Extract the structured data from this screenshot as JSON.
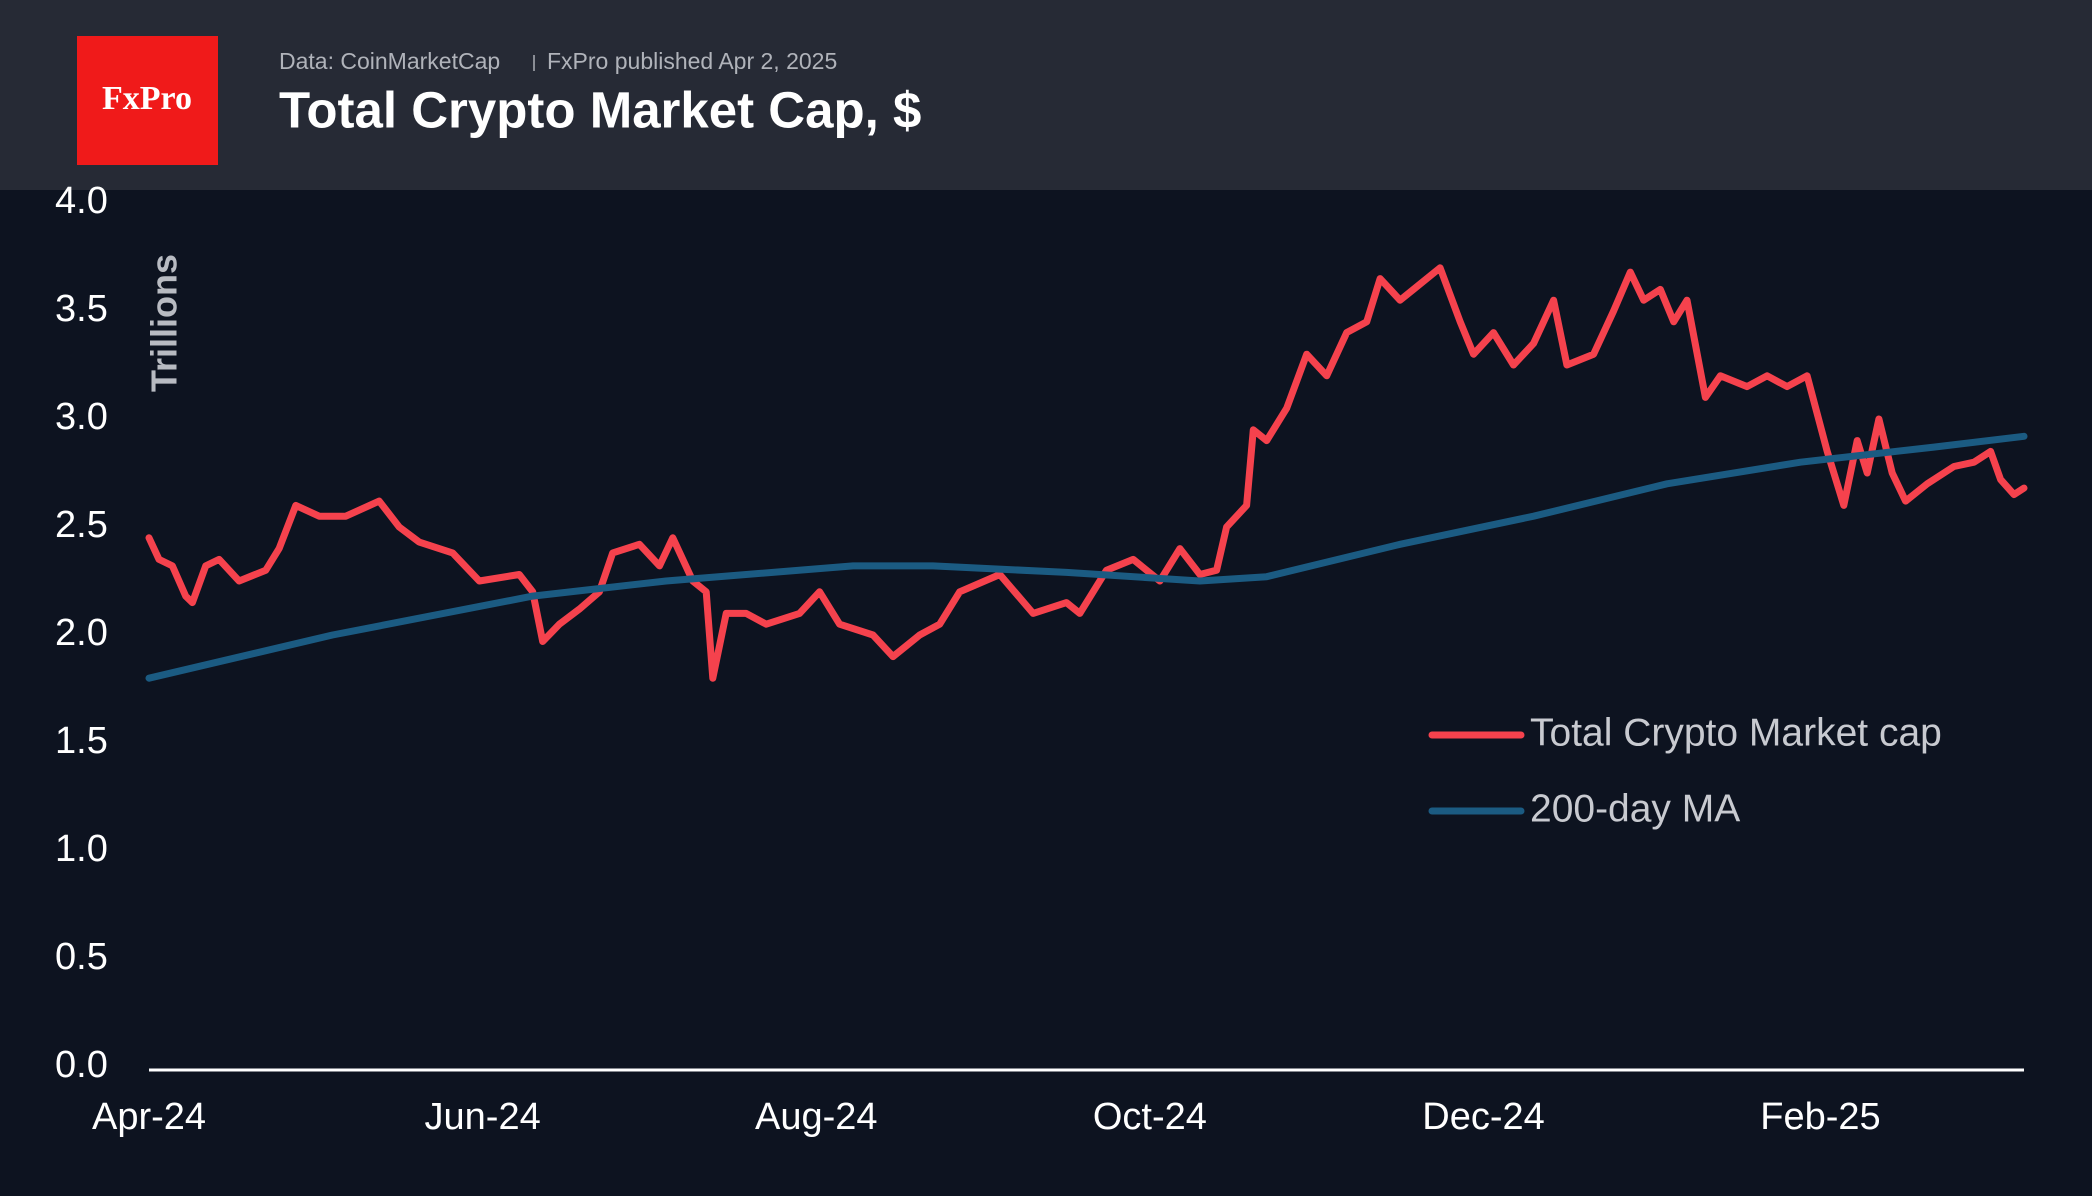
{
  "chart_data": {
    "type": "line",
    "logo": "FxPro",
    "source": "Data: CoinMarketCap",
    "published": "FxPro published Apr 2, 2025",
    "title": "Total Crypto Market Cap, $",
    "y_label": "Trillions",
    "xlim": [
      0,
      11.24
    ],
    "xticks": [
      {
        "value": 0,
        "label": "Apr-24"
      },
      {
        "value": 2,
        "label": "Jun-24"
      },
      {
        "value": 4,
        "label": "Aug-24"
      },
      {
        "value": 6,
        "label": "Oct-24"
      },
      {
        "value": 8,
        "label": "Dec-24"
      },
      {
        "value": 10.02,
        "label": "Feb-25"
      }
    ],
    "ylim": [
      0,
      4
    ],
    "yticks": [
      {
        "value": 0,
        "label": "0.0"
      },
      0.5,
      {
        "value": 1,
        "label": "1.0"
      },
      1.5,
      {
        "value": 2,
        "label": "2.0"
      },
      2.5,
      {
        "value": 3,
        "label": "3.0"
      },
      3.5,
      {
        "value": 4,
        "label": "4.0"
      }
    ],
    "legend": "right",
    "series": [
      {
        "name": "Total Crypto Market cap",
        "color": "#f5424d",
        "x": [
          0,
          0.06,
          0.14,
          0.22,
          0.26,
          0.34,
          0.42,
          0.54,
          0.7,
          0.78,
          0.88,
          1.02,
          1.18,
          1.38,
          1.5,
          1.62,
          1.82,
          1.98,
          2.22,
          2.3,
          2.36,
          2.46,
          2.58,
          2.7,
          2.78,
          2.94,
          3.06,
          3.14,
          3.26,
          3.34,
          3.38,
          3.46,
          3.58,
          3.7,
          3.9,
          4.02,
          4.14,
          4.34,
          4.46,
          4.62,
          4.74,
          4.86,
          5.1,
          5.3,
          5.5,
          5.58,
          5.74,
          5.9,
          6.06,
          6.18,
          6.3,
          6.4,
          6.46,
          6.58,
          6.62,
          6.7,
          6.82,
          6.94,
          7.06,
          7.18,
          7.3,
          7.38,
          7.5,
          7.58,
          7.74,
          7.86,
          7.94,
          8.06,
          8.18,
          8.3,
          8.42,
          8.5,
          8.66,
          8.78,
          8.88,
          8.96,
          9.06,
          9.14,
          9.22,
          9.33,
          9.42,
          9.58,
          9.7,
          9.82,
          9.94,
          10.06,
          10.16,
          10.24,
          10.3,
          10.37,
          10.45,
          10.53,
          10.66,
          10.82,
          10.94,
          11.04,
          11.1,
          11.18,
          11.24
        ],
        "values": [
          2.45,
          2.35,
          2.32,
          2.18,
          2.15,
          2.32,
          2.35,
          2.25,
          2.3,
          2.4,
          2.6,
          2.55,
          2.55,
          2.62,
          2.5,
          2.43,
          2.38,
          2.25,
          2.28,
          2.2,
          1.97,
          2.05,
          2.12,
          2.2,
          2.38,
          2.42,
          2.32,
          2.45,
          2.25,
          2.2,
          1.8,
          2.1,
          2.1,
          2.05,
          2.1,
          2.2,
          2.05,
          2.0,
          1.9,
          2.0,
          2.05,
          2.2,
          2.28,
          2.1,
          2.15,
          2.1,
          2.3,
          2.35,
          2.25,
          2.4,
          2.28,
          2.3,
          2.5,
          2.6,
          2.95,
          2.9,
          3.05,
          3.3,
          3.2,
          3.4,
          3.45,
          3.65,
          3.55,
          3.6,
          3.7,
          3.45,
          3.3,
          3.4,
          3.25,
          3.35,
          3.55,
          3.25,
          3.3,
          3.5,
          3.68,
          3.55,
          3.6,
          3.45,
          3.55,
          3.1,
          3.2,
          3.15,
          3.2,
          3.15,
          3.2,
          2.85,
          2.6,
          2.9,
          2.75,
          3.0,
          2.75,
          2.62,
          2.7,
          2.78,
          2.8,
          2.85,
          2.72,
          2.65,
          2.68
        ]
      },
      {
        "name": "200-day MA",
        "color": "#1b5b82",
        "x": [
          0,
          1.1,
          2.3,
          3.1,
          4.22,
          4.7,
          5.5,
          6.3,
          6.7,
          7.5,
          8.3,
          9.1,
          9.9,
          10.7,
          11.24
        ],
        "values": [
          1.8,
          2.0,
          2.18,
          2.25,
          2.32,
          2.32,
          2.29,
          2.25,
          2.27,
          2.42,
          2.55,
          2.7,
          2.8,
          2.87,
          2.92
        ]
      }
    ]
  }
}
